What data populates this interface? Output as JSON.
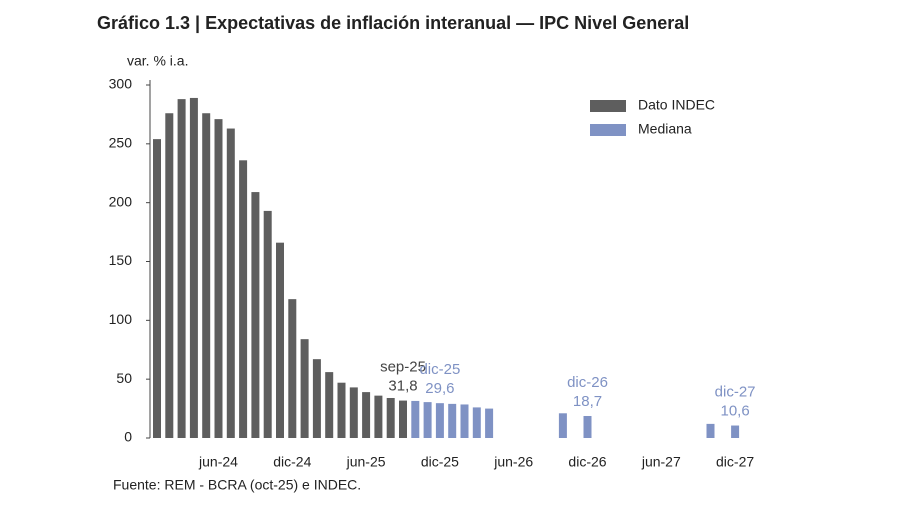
{
  "chart_data": {
    "type": "bar",
    "title": "Gráfico 1.3 | Expectativas de inflación interanual — IPC Nivel General",
    "y_label": "var. % i.a.",
    "source": "Fuente: REM - BCRA (oct-25) e INDEC.",
    "categories": [
      null,
      null,
      null,
      null,
      null,
      "jun-24",
      null,
      null,
      null,
      null,
      null,
      "dic-24",
      null,
      null,
      null,
      null,
      null,
      "jun-25",
      null,
      null,
      null,
      null,
      null,
      "dic-25",
      null,
      null,
      null,
      null,
      null,
      "jun-26",
      null,
      null,
      null,
      null,
      null,
      "dic-26",
      null,
      null,
      null,
      null,
      null,
      "jun-27",
      null,
      null,
      null,
      null,
      null,
      "dic-27"
    ],
    "series": [
      {
        "name": "Dato INDEC",
        "color": "#5e5e5e",
        "values": [
          254,
          276,
          288,
          289,
          276,
          271,
          263,
          236,
          209,
          193,
          166,
          118,
          84,
          67,
          56,
          47,
          43,
          39,
          36,
          34,
          31.8,
          null,
          null,
          null,
          null,
          null,
          null,
          null,
          null,
          null,
          null,
          null,
          null,
          null,
          null,
          null,
          null,
          null,
          null,
          null,
          null,
          null,
          null,
          null,
          null,
          null,
          null,
          null
        ],
        "value_labels": [
          null,
          null,
          null,
          null,
          null,
          null,
          null,
          null,
          null,
          null,
          null,
          null,
          null,
          null,
          null,
          null,
          null,
          null,
          null,
          null,
          "31,8",
          null,
          null,
          null,
          null,
          null,
          null,
          null,
          null,
          null,
          null,
          null,
          null,
          null,
          null,
          null,
          null,
          null,
          null,
          null,
          null,
          null,
          null,
          null,
          null,
          null,
          null,
          null
        ]
      },
      {
        "name": "Mediana",
        "color": "#7f92c4",
        "values": [
          null,
          null,
          null,
          null,
          null,
          null,
          null,
          null,
          null,
          null,
          null,
          null,
          null,
          null,
          null,
          null,
          null,
          null,
          null,
          null,
          null,
          31.5,
          30.5,
          29.6,
          29,
          28.5,
          26,
          25,
          null,
          null,
          null,
          null,
          null,
          21,
          null,
          18.7,
          null,
          null,
          null,
          null,
          null,
          null,
          null,
          null,
          null,
          12,
          null,
          10.6
        ],
        "value_labels": [
          null,
          null,
          null,
          null,
          null,
          null,
          null,
          null,
          null,
          null,
          null,
          null,
          null,
          null,
          null,
          null,
          null,
          null,
          null,
          null,
          null,
          null,
          null,
          "29,6",
          null,
          null,
          null,
          null,
          null,
          null,
          null,
          null,
          null,
          null,
          null,
          "18,7",
          null,
          null,
          null,
          null,
          null,
          null,
          null,
          null,
          null,
          null,
          null,
          "10,6"
        ]
      }
    ],
    "annotations": [
      "sep-25",
      "dic-25",
      "dic-26",
      "dic-27"
    ],
    "ylim": [
      0,
      300
    ],
    "yticks": [
      0,
      50,
      100,
      150,
      200,
      250,
      300
    ],
    "grid": false,
    "legend": "top-right"
  }
}
